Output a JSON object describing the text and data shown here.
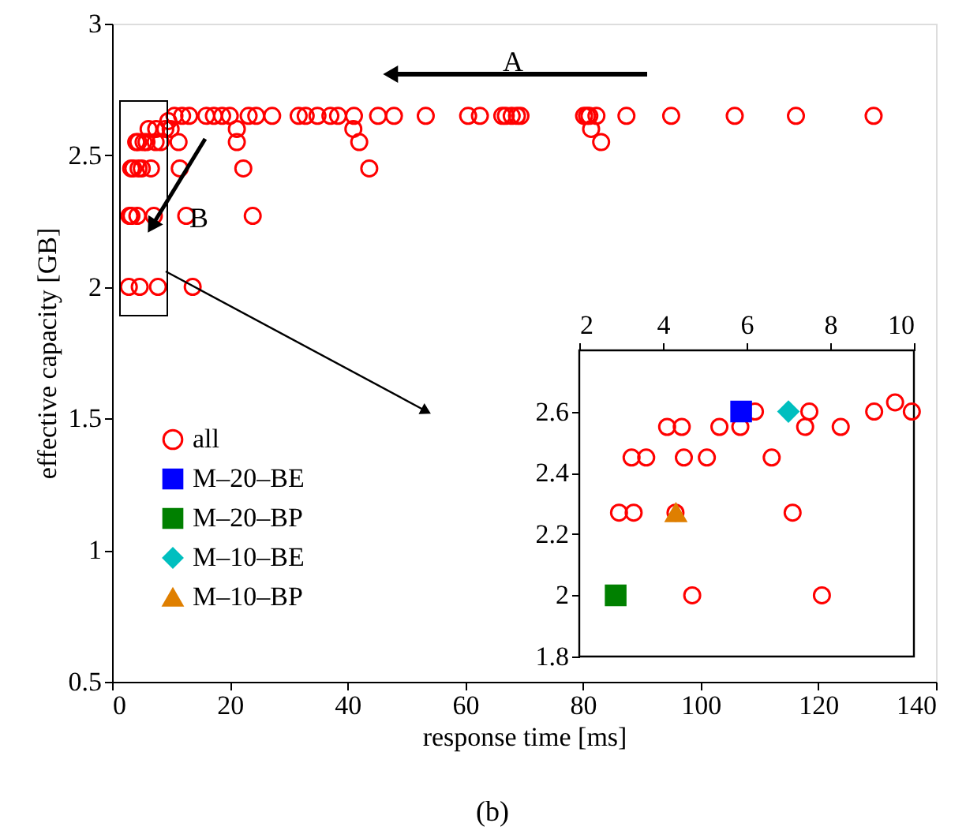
{
  "chart_data": [
    {
      "type": "scatter",
      "xlabel": "response time [ms]",
      "ylabel": "effective capacity [GB]",
      "xlim": [
        0,
        140
      ],
      "ylim": [
        0.5,
        3
      ],
      "xticks": [
        0,
        20,
        40,
        60,
        80,
        100,
        120,
        140
      ],
      "yticks": [
        0.5,
        1,
        1.5,
        2,
        2.5,
        3
      ],
      "grid": false,
      "legend": "left",
      "series": [
        {
          "name": "all",
          "color": "#ff0000",
          "marker": "circle",
          "x": [
            6.2,
            7.5,
            9.05,
            9.95,
            9.55,
            4.1,
            4.45,
            5.35,
            5.85,
            7.4,
            8.25,
            3.25,
            3.6,
            4.5,
            5.05,
            6.6,
            2.95,
            3.3,
            4.3,
            7.1,
            2.85,
            4.7,
            7.8,
            10.6,
            11.9,
            13.1,
            16.0,
            17.3,
            18.7,
            20.0,
            23.2,
            24.5,
            27.2,
            31.7,
            32.9,
            34.9,
            37.1,
            38.4,
            41.1,
            45.2,
            47.9,
            53.3,
            60.5,
            62.5,
            66.3,
            66.9,
            67.9,
            68.8,
            69.4,
            80.2,
            80.7,
            81.1,
            82.3,
            87.4,
            95.0,
            105.8,
            116.2,
            129.4,
            21.2,
            41.0,
            81.4,
            11.3,
            21.2,
            42.0,
            83.1,
            11.5,
            22.3,
            43.7,
            12.6,
            23.9,
            13.7
          ],
          "values": [
            2.6,
            2.6,
            2.6,
            2.6,
            2.63,
            2.55,
            2.55,
            2.55,
            2.55,
            2.55,
            2.55,
            2.45,
            2.45,
            2.45,
            2.45,
            2.45,
            2.27,
            2.27,
            2.27,
            2.27,
            2.0,
            2.0,
            2.0,
            2.65,
            2.65,
            2.65,
            2.65,
            2.65,
            2.65,
            2.65,
            2.65,
            2.65,
            2.65,
            2.65,
            2.65,
            2.65,
            2.65,
            2.65,
            2.65,
            2.65,
            2.65,
            2.65,
            2.65,
            2.65,
            2.65,
            2.65,
            2.65,
            2.65,
            2.65,
            2.65,
            2.65,
            2.65,
            2.65,
            2.65,
            2.65,
            2.65,
            2.65,
            2.65,
            2.6,
            2.6,
            2.6,
            2.55,
            2.55,
            2.55,
            2.55,
            2.45,
            2.45,
            2.45,
            2.27,
            2.27,
            2.0
          ]
        }
      ],
      "annotations": [
        "A",
        "B",
        "(b)"
      ]
    },
    {
      "type": "scatter",
      "legend": "left",
      "xlim": [
        2,
        10
      ],
      "ylim": [
        1.8,
        2.8
      ],
      "xticks": [
        2,
        4,
        6,
        8,
        10
      ],
      "yticks": [
        1.8,
        2,
        2.2,
        2.4,
        2.6
      ],
      "grid": false,
      "series": [
        {
          "name": "all",
          "color": "#ff0000",
          "marker": "circle",
          "x": [
            6.2,
            7.5,
            9.05,
            9.95,
            9.55,
            4.1,
            4.45,
            5.35,
            5.85,
            7.4,
            8.25,
            3.25,
            3.6,
            4.5,
            5.05,
            6.6,
            2.95,
            3.3,
            4.3,
            7.1,
            4.7,
            7.8
          ],
          "values": [
            2.6,
            2.6,
            2.6,
            2.6,
            2.63,
            2.55,
            2.55,
            2.55,
            2.55,
            2.55,
            2.55,
            2.45,
            2.45,
            2.45,
            2.45,
            2.45,
            2.27,
            2.27,
            2.27,
            2.27,
            2.0,
            2.0
          ]
        },
        {
          "name": "M–20–BE",
          "color": "#0000ff",
          "marker": "square",
          "x": [
            5.87
          ],
          "values": [
            2.6
          ]
        },
        {
          "name": "M–20–BP",
          "color": "#008000",
          "marker": "square",
          "x": [
            2.87
          ],
          "values": [
            2.0
          ]
        },
        {
          "name": "M–10–BE",
          "color": "#00bfbf",
          "marker": "diamond",
          "x": [
            7.0
          ],
          "values": [
            2.6
          ]
        },
        {
          "name": "M–10–BP",
          "color": "#df7f00",
          "marker": "triangle",
          "x": [
            4.31
          ],
          "values": [
            2.27
          ]
        }
      ]
    }
  ]
}
